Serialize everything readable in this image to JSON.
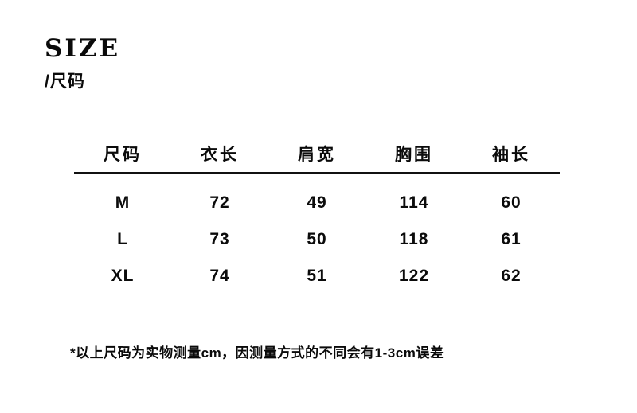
{
  "colors": {
    "background": "#ffffff",
    "text": "#0b0b0b",
    "rule": "#111111"
  },
  "chart_data": {
    "type": "table",
    "title": "SIZE",
    "subtitle": "/尺码",
    "unit": "cm",
    "columns": [
      "尺码",
      "衣长",
      "肩宽",
      "胸围",
      "袖长"
    ],
    "rows": [
      [
        "M",
        "72",
        "49",
        "114",
        "60"
      ],
      [
        "L",
        "73",
        "50",
        "118",
        "61"
      ],
      [
        "XL",
        "74",
        "51",
        "122",
        "62"
      ]
    ],
    "footnote": "*以上尺码为实物测量cm，因测量方式的不同会有1-3cm误差",
    "layout": {
      "header_rule": "single heavy horizontal line under header row",
      "grid": "off",
      "alignment": "center"
    }
  }
}
